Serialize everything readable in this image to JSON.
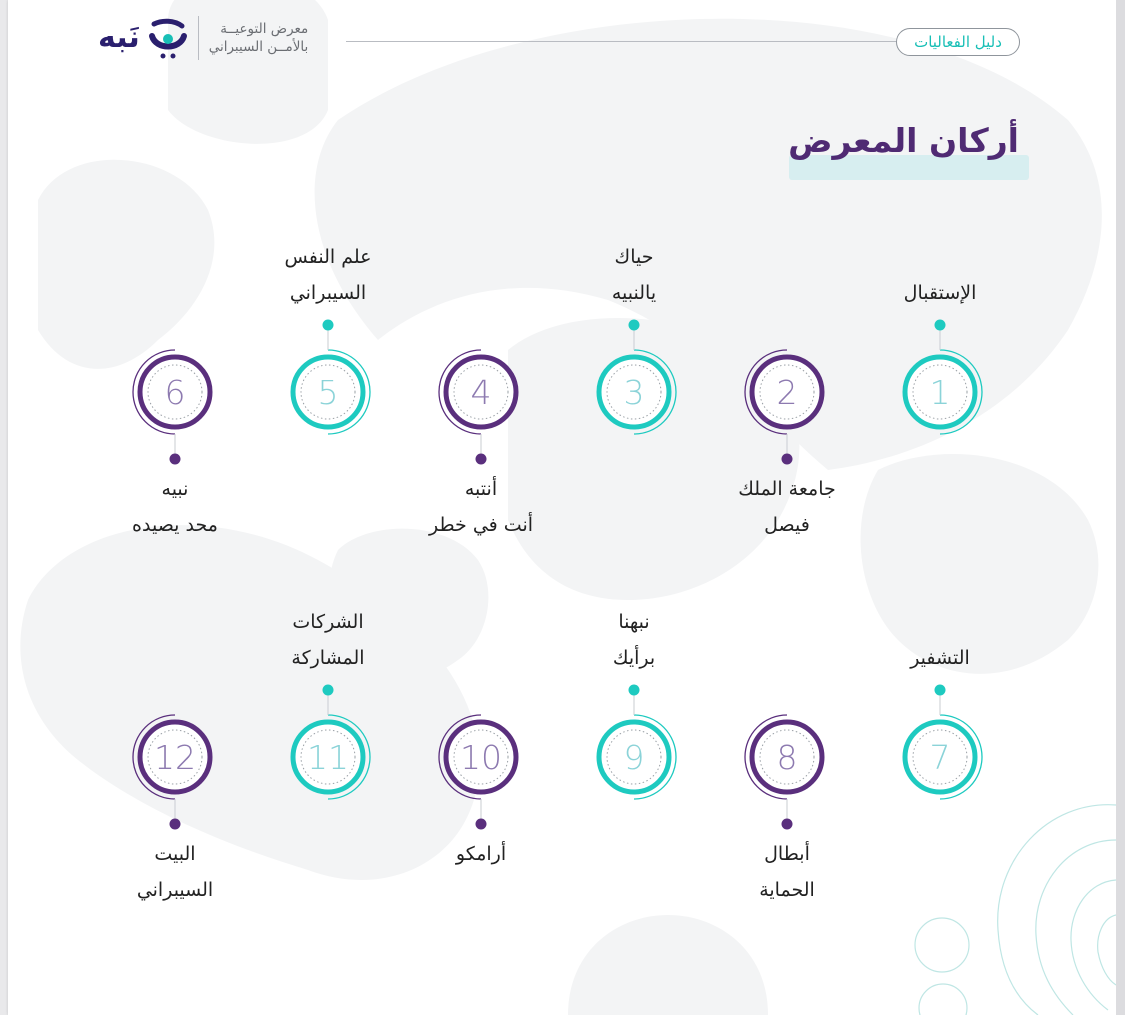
{
  "header": {
    "guide_label": "دليل الفعاليات",
    "logo_word": "نَبه",
    "logo_line1": "معرض التوعيــة",
    "logo_line2": "بالأمــن السيبراني"
  },
  "section_title": "أركان المعرض",
  "colors": {
    "teal": "#1ecac0",
    "purple": "#5a2f7d",
    "title_purple": "#4f2a73",
    "title_bar": "#d7eef0"
  },
  "pillars": [
    {
      "number": "1",
      "label": [
        "الإستقبال"
      ],
      "color": "teal"
    },
    {
      "number": "2",
      "label": [
        "جامعة الملك",
        "فيصل"
      ],
      "color": "purple"
    },
    {
      "number": "3",
      "label": [
        "حياك",
        "يالنبيه"
      ],
      "color": "teal"
    },
    {
      "number": "4",
      "label": [
        "أنتبه",
        "أنت في خطر"
      ],
      "color": "purple"
    },
    {
      "number": "5",
      "label": [
        "علم النفس",
        "السيبراني"
      ],
      "color": "teal"
    },
    {
      "number": "6",
      "label": [
        "نبيه",
        "محد يصيده"
      ],
      "color": "purple"
    },
    {
      "number": "7",
      "label": [
        "التشفير"
      ],
      "color": "teal"
    },
    {
      "number": "8",
      "label": [
        "أبطال",
        "الحماية"
      ],
      "color": "purple"
    },
    {
      "number": "9",
      "label": [
        "نبهنا",
        "برأيك"
      ],
      "color": "teal"
    },
    {
      "number": "10",
      "label": [
        "أرامكو"
      ],
      "color": "purple"
    },
    {
      "number": "11",
      "label": [
        "الشركات",
        "المشاركة"
      ],
      "color": "teal"
    },
    {
      "number": "12",
      "label": [
        "البيت",
        "السيبراني"
      ],
      "color": "purple"
    }
  ]
}
